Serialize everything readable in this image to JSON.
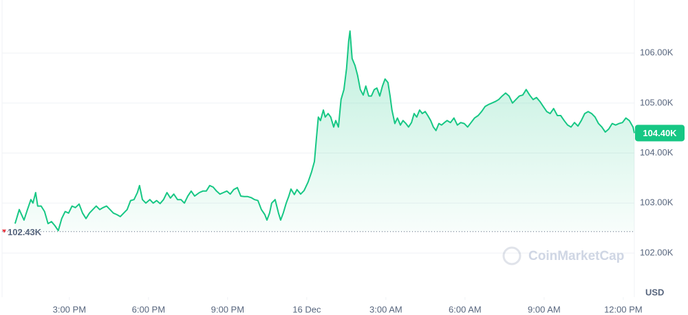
{
  "chart_data": {
    "type": "line",
    "color": "#16c784",
    "x": [
      12.94,
      13.1,
      13.28,
      13.41,
      13.54,
      13.62,
      13.72,
      13.8,
      13.93,
      14.06,
      14.19,
      14.32,
      14.45,
      14.58,
      14.71,
      14.84,
      14.97,
      15.1,
      15.23,
      15.37,
      15.5,
      15.63,
      15.76,
      15.89,
      16.02,
      16.15,
      16.28,
      16.41,
      16.54,
      16.67,
      16.8,
      16.93,
      17.06,
      17.19,
      17.32,
      17.45,
      17.58,
      17.66,
      17.77,
      17.9,
      18.05,
      18.18,
      18.31,
      18.44,
      18.57,
      18.7,
      18.83,
      18.96,
      19.1,
      19.23,
      19.36,
      19.49,
      19.62,
      19.75,
      19.93,
      20.06,
      20.19,
      20.32,
      20.45,
      20.58,
      20.71,
      20.84,
      20.97,
      21.1,
      21.23,
      21.37,
      21.5,
      21.63,
      21.76,
      21.89,
      22.02,
      22.15,
      22.28,
      22.41,
      22.49,
      22.59,
      22.67,
      22.8,
      22.93,
      23.01,
      23.11,
      23.22,
      23.32,
      23.4,
      23.53,
      23.63,
      23.77,
      23.9,
      24.05,
      24.18,
      24.29,
      24.37,
      24.44,
      24.52,
      24.63,
      24.7,
      24.81,
      24.91,
      25.02,
      25.1,
      25.2,
      25.3,
      25.41,
      25.51,
      25.59,
      25.64,
      25.72,
      25.83,
      25.93,
      26.03,
      26.14,
      26.24,
      26.35,
      26.45,
      26.56,
      26.66,
      26.77,
      26.87,
      26.97,
      27.08,
      27.16,
      27.23,
      27.34,
      27.44,
      27.55,
      27.65,
      27.76,
      27.86,
      27.97,
      28.07,
      28.17,
      28.28,
      28.38,
      28.49,
      28.59,
      28.7,
      28.8,
      28.9,
      29.01,
      29.11,
      29.22,
      29.32,
      29.45,
      29.58,
      29.71,
      29.84,
      29.97,
      30.1,
      30.23,
      30.36,
      30.5,
      30.63,
      30.76,
      30.89,
      31.02,
      31.15,
      31.28,
      31.41,
      31.54,
      31.67,
      31.8,
      31.93,
      32.06,
      32.19,
      32.32,
      32.45,
      32.58,
      32.71,
      32.84,
      32.97,
      33.1,
      33.23,
      33.36,
      33.5,
      33.63,
      33.76,
      33.89,
      34.02,
      34.15,
      34.28,
      34.41,
      34.54,
      34.67,
      34.8,
      34.93,
      35.06,
      35.19,
      35.32,
      35.45,
      35.58,
      35.71,
      35.84,
      35.97,
      36.1,
      36.23,
      36.37,
      36.42
    ],
    "values": [
      102590,
      102870,
      102660,
      102870,
      103070,
      103000,
      103210,
      102940,
      102940,
      102830,
      102590,
      102630,
      102550,
      102450,
      102690,
      102830,
      102800,
      102940,
      102910,
      102980,
      102800,
      102690,
      102800,
      102870,
      102940,
      102870,
      102910,
      102940,
      102870,
      102800,
      102770,
      102730,
      102800,
      102870,
      103050,
      103070,
      103210,
      103350,
      103070,
      103000,
      103070,
      103000,
      103050,
      102990,
      103070,
      103210,
      103100,
      103180,
      103070,
      103070,
      103000,
      103140,
      103240,
      103140,
      103210,
      103240,
      103240,
      103350,
      103320,
      103240,
      103180,
      103210,
      103240,
      103180,
      103270,
      103310,
      103140,
      103130,
      103130,
      103110,
      103070,
      103050,
      102870,
      102770,
      102660,
      102800,
      103000,
      103070,
      102800,
      102660,
      102800,
      103000,
      103140,
      103280,
      103170,
      103270,
      103180,
      103250,
      103420,
      103620,
      103830,
      104310,
      104720,
      104650,
      104860,
      104720,
      104790,
      104720,
      104520,
      104650,
      104520,
      105070,
      105270,
      105690,
      106240,
      106440,
      105890,
      105750,
      105550,
      105270,
      105160,
      105340,
      105140,
      105140,
      105270,
      105300,
      105140,
      105340,
      105480,
      105410,
      105140,
      104860,
      104590,
      104700,
      104560,
      104650,
      104590,
      104520,
      104610,
      104790,
      104720,
      104860,
      104790,
      104830,
      104750,
      104650,
      104520,
      104450,
      104590,
      104560,
      104610,
      104650,
      104610,
      104700,
      104560,
      104610,
      104590,
      104520,
      104610,
      104700,
      104750,
      104830,
      104930,
      104970,
      105000,
      105030,
      105070,
      105140,
      105200,
      105140,
      105000,
      105070,
      105140,
      105160,
      105270,
      105160,
      105070,
      105110,
      105030,
      104930,
      104830,
      104790,
      104890,
      104750,
      104750,
      104650,
      104560,
      104520,
      104610,
      104540,
      104650,
      104790,
      104830,
      104790,
      104720,
      104590,
      104520,
      104420,
      104480,
      104590,
      104560,
      104590,
      104610,
      104700,
      104650,
      104520,
      104400
    ],
    "xlim": [
      12.37,
      36.42
    ],
    "ylim": [
      101120,
      107060
    ],
    "xticks": [
      {
        "value": 15,
        "label": "3:00 PM"
      },
      {
        "value": 18,
        "label": "6:00 PM"
      },
      {
        "value": 21,
        "label": "9:00 PM"
      },
      {
        "value": 24,
        "label": "16 Dec"
      },
      {
        "value": 27,
        "label": "3:00 AM"
      },
      {
        "value": 30,
        "label": "6:00 AM"
      },
      {
        "value": 33,
        "label": "9:00 AM"
      },
      {
        "value": 36,
        "label": "12:00 PM"
      }
    ],
    "yticks": [
      {
        "value": 102000,
        "label": "102.00K"
      },
      {
        "value": 103000,
        "label": "103.00K"
      },
      {
        "value": 104000,
        "label": "104.00K"
      },
      {
        "value": 105000,
        "label": "105.00K"
      },
      {
        "value": 106000,
        "label": "106.00K"
      }
    ],
    "grid": true,
    "open_price": {
      "value": 102430,
      "label": "102.43K"
    },
    "last_price": {
      "value": 104400,
      "label": "104.40K"
    },
    "y_axis_label": "USD",
    "watermark": "CoinMarketCap"
  }
}
